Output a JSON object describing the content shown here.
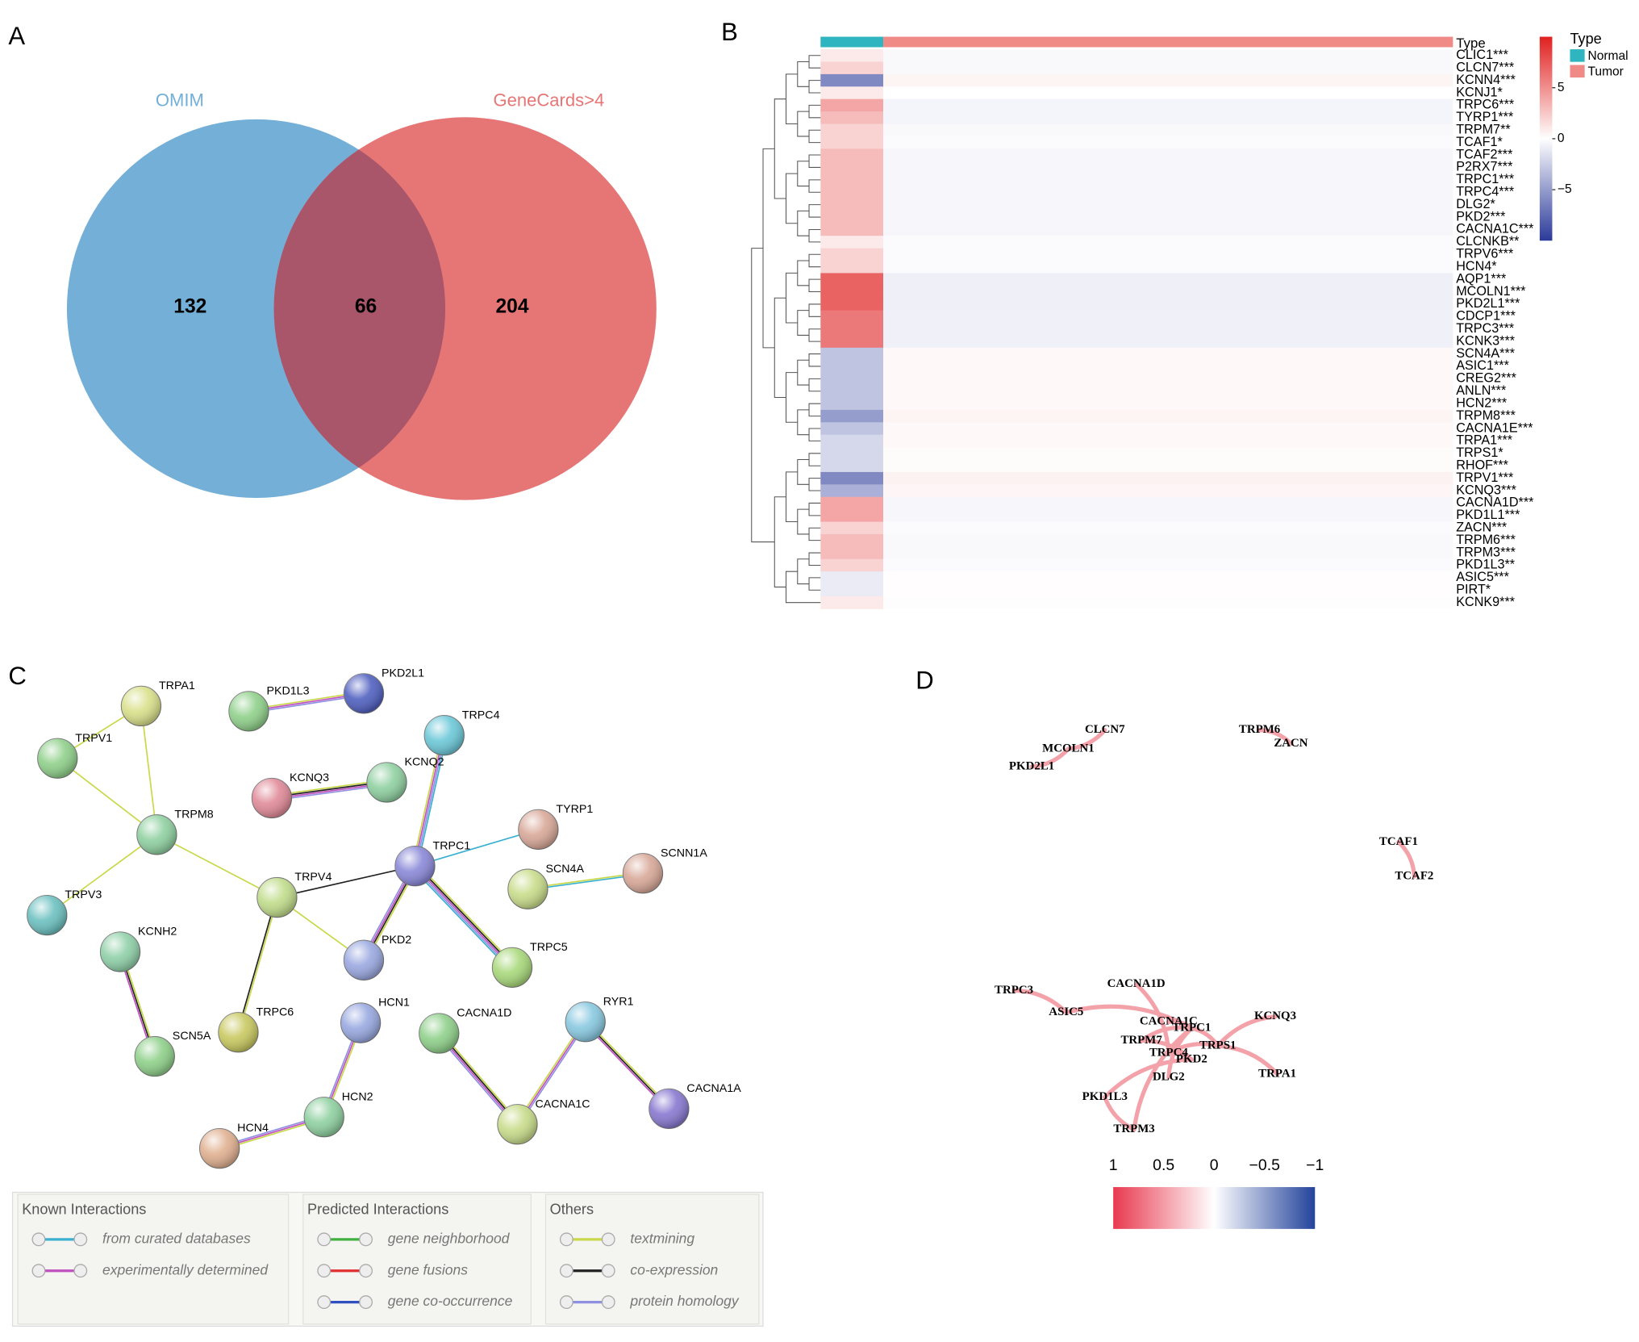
{
  "panel_labels": [
    "A",
    "B",
    "C",
    "D"
  ],
  "chart_data": [
    {
      "type": "venn",
      "sets": [
        {
          "name": "OMIM",
          "color": "#74afd8"
        },
        {
          "name": "GeneCards>4",
          "color": "#e67676"
        }
      ],
      "overlap_color": "#a9556a",
      "values": [
        132,
        66,
        204
      ]
    },
    {
      "type": "heatmap",
      "group_label": "Type",
      "rows": [
        "CLIC1***",
        "CLCN7***",
        "KCNN4***",
        "KCNJ1*",
        "TRPC6***",
        "TYRP1***",
        "TRPM7**",
        "TCAF1*",
        "TCAF2***",
        "P2RX7***",
        "TRPC1***",
        "TRPC4***",
        "DLG2*",
        "PKD2***",
        "CACNA1C***",
        "CLCNKB**",
        "TRPV6***",
        "HCN4*",
        "AQP1***",
        "MCOLN1***",
        "PKD2L1***",
        "CDCP1***",
        "TRPC3***",
        "KCNK3***",
        "SCN4A***",
        "ASIC1***",
        "CREG2***",
        "ANLN***",
        "HCN2***",
        "TRPM8***",
        "CACNA1E***",
        "TRPA1***",
        "TRPS1*",
        "RHOF***",
        "TRPV1***",
        "KCNQ3***",
        "CACNA1D***",
        "PKD1L1***",
        "ZACN***",
        "TRPM6***",
        "TRPM3***",
        "PKD1L3**",
        "ASIC5***",
        "PIRT*",
        "KCNK9***"
      ],
      "series": [
        {
          "name": "Normal",
          "color": "#2fb5bf",
          "values": [
            1,
            2,
            -6,
            1,
            4,
            3,
            2,
            2,
            3,
            3,
            3,
            3,
            3,
            3,
            3,
            1,
            2,
            2,
            7,
            7,
            7,
            6,
            6,
            6,
            -3,
            -3,
            -3,
            -3,
            -3,
            -5,
            -3,
            -2,
            -2,
            -2,
            -6,
            -4,
            4,
            4,
            2,
            3,
            3,
            2,
            -1,
            -1,
            1
          ]
        },
        {
          "name": "Tumor",
          "color": "#f08a86",
          "values": [
            -0.3,
            -0.3,
            0.5,
            0,
            -0.5,
            -0.5,
            -0.3,
            -0.2,
            -0.4,
            -0.4,
            -0.4,
            -0.4,
            -0.4,
            -0.4,
            -0.4,
            -0.2,
            -0.2,
            -0.2,
            -0.8,
            -0.8,
            -0.8,
            -0.7,
            -0.7,
            -0.7,
            0.3,
            0.3,
            0.3,
            0.3,
            0.3,
            0.5,
            0.3,
            0.3,
            0.2,
            0.2,
            0.6,
            0.4,
            -0.4,
            -0.4,
            -0.2,
            -0.3,
            -0.3,
            -0.2,
            0.1,
            0.1,
            -0.1
          ]
        }
      ],
      "colorbar": {
        "lim": [
          10,
          -10
        ],
        "ticks": [
          5,
          0,
          {
            "value": -5,
            "label": "−5"
          }
        ],
        "colors": [
          "#e0201f",
          "#ffffff",
          "#2b3a9a"
        ]
      }
    },
    {
      "type": "network",
      "nodes": [
        {
          "label": "TRPA1",
          "color": "#d9e08a"
        },
        {
          "label": "TRPV1",
          "color": "#8fd08a"
        },
        {
          "label": "TRPM8",
          "color": "#8fd0a0"
        },
        {
          "label": "TRPV3",
          "color": "#6cc0c0"
        },
        {
          "label": "KCNH2",
          "color": "#8fd0a8"
        },
        {
          "label": "SCN5A",
          "color": "#8fd08a"
        },
        {
          "label": "TRPC6",
          "color": "#c8c860"
        },
        {
          "label": "TRPV4",
          "color": "#c0dc8a"
        },
        {
          "label": "PKD2",
          "color": "#9aa8e0"
        },
        {
          "label": "TRPC1",
          "color": "#8a88d8"
        },
        {
          "label": "KCNQ3",
          "color": "#e08a98"
        },
        {
          "label": "KCNQ2",
          "color": "#8fd0a0"
        },
        {
          "label": "TRPC4",
          "color": "#6cc8d8"
        },
        {
          "label": "PKD1L3",
          "color": "#8fd08a"
        },
        {
          "label": "PKD2L1",
          "color": "#5060c0"
        },
        {
          "label": "TYRP1",
          "color": "#d8a898"
        },
        {
          "label": "SCN4A",
          "color": "#c8dc8a"
        },
        {
          "label": "SCNN1A",
          "color": "#d8a898"
        },
        {
          "label": "TRPC5",
          "color": "#a8d87a"
        },
        {
          "label": "HCN1",
          "color": "#98a8e0"
        },
        {
          "label": "HCN2",
          "color": "#8fd0a0"
        },
        {
          "label": "HCN4",
          "color": "#e0b090"
        },
        {
          "label": "CACNA1D",
          "color": "#8fd08a"
        },
        {
          "label": "CACNA1C",
          "color": "#c8dc8a"
        },
        {
          "label": "RYR1",
          "color": "#88c8e0"
        },
        {
          "label": "CACNA1A",
          "color": "#8878d0"
        }
      ],
      "edges": [
        {
          "source": "TRPA1",
          "target": "TRPV1",
          "colors": [
            "#c8d848"
          ]
        },
        {
          "source": "TRPA1",
          "target": "TRPM8",
          "colors": [
            "#c8d848"
          ]
        },
        {
          "source": "TRPV1",
          "target": "TRPM8",
          "colors": [
            "#c8d848"
          ]
        },
        {
          "source": "TRPM8",
          "target": "TRPV3",
          "colors": [
            "#c8d848"
          ]
        },
        {
          "source": "TRPM8",
          "target": "TRPV4",
          "colors": [
            "#c8d848"
          ]
        },
        {
          "source": "TRPV4",
          "target": "TRPC1",
          "colors": [
            "#222222"
          ]
        },
        {
          "source": "TRPV4",
          "target": "TRPC6",
          "colors": [
            "#c8d848",
            "#222222"
          ]
        },
        {
          "source": "TRPV4",
          "target": "PKD2",
          "colors": [
            "#c8d848"
          ]
        },
        {
          "source": "TRPC1",
          "target": "PKD2",
          "colors": [
            "#c8d848",
            "#222222",
            "#c050c0",
            "#9090e0"
          ]
        },
        {
          "source": "TRPC1",
          "target": "TRPC4",
          "colors": [
            "#c8d848",
            "#c050c0",
            "#9090e0",
            "#3ab0d0"
          ]
        },
        {
          "source": "TRPC1",
          "target": "TYRP1",
          "colors": [
            "#3ab0d0"
          ]
        },
        {
          "source": "TRPC1",
          "target": "TRPC5",
          "colors": [
            "#c8d848",
            "#222222",
            "#c050c0",
            "#9090e0",
            "#3ab0d0"
          ]
        },
        {
          "source": "KCNQ3",
          "target": "KCNQ2",
          "colors": [
            "#c8d848",
            "#222222",
            "#c050c0",
            "#9090e0"
          ]
        },
        {
          "source": "PKD1L3",
          "target": "PKD2L1",
          "colors": [
            "#c8d848",
            "#c050c0",
            "#9090e0"
          ]
        },
        {
          "source": "SCN4A",
          "target": "SCNN1A",
          "colors": [
            "#c8d848",
            "#3ab0d0"
          ]
        },
        {
          "source": "KCNH2",
          "target": "SCN5A",
          "colors": [
            "#c8d848",
            "#222222",
            "#c050c0"
          ]
        },
        {
          "source": "HCN1",
          "target": "HCN2",
          "colors": [
            "#c8d848",
            "#c050c0",
            "#9090e0"
          ]
        },
        {
          "source": "HCN2",
          "target": "HCN4",
          "colors": [
            "#c8d848",
            "#c050c0",
            "#9090e0"
          ]
        },
        {
          "source": "CACNA1D",
          "target": "CACNA1C",
          "colors": [
            "#c8d848",
            "#222222",
            "#c050c0",
            "#9090e0"
          ]
        },
        {
          "source": "CACNA1C",
          "target": "RYR1",
          "colors": [
            "#c8d848",
            "#c050c0",
            "#9090e0"
          ]
        },
        {
          "source": "RYR1",
          "target": "CACNA1A",
          "colors": [
            "#c8d848",
            "#222222",
            "#c050c0"
          ]
        }
      ],
      "legend": [
        {
          "title": "Known Interactions",
          "items": [
            {
              "label": "from curated databases",
              "color": "#3ab0d0"
            },
            {
              "label": "experimentally determined",
              "color": "#c050c0"
            }
          ]
        },
        {
          "title": "Predicted Interactions",
          "items": [
            {
              "label": "gene neighborhood",
              "color": "#40b040"
            },
            {
              "label": "gene fusions",
              "color": "#e03030"
            },
            {
              "label": "gene co-occurrence",
              "color": "#3050c0"
            }
          ]
        },
        {
          "title": "Others",
          "items": [
            {
              "label": "textmining",
              "color": "#c8d848"
            },
            {
              "label": "co-expression",
              "color": "#222222"
            },
            {
              "label": "protein homology",
              "color": "#9090e0"
            }
          ]
        }
      ]
    },
    {
      "type": "network",
      "edge_color": "#f4a2aa",
      "nodes": [
        "CLCN7",
        "MCOLN1",
        "PKD2L1",
        "TRPM6",
        "ZACN",
        "TCAF1",
        "TCAF2",
        "TRPC3",
        "ASIC5",
        "CACNA1D",
        "CACNA1C",
        "TRPC1",
        "TRPM7",
        "TRPS1",
        "TRPC4",
        "PKD2",
        "DLG2",
        "KCNQ3",
        "TRPA1",
        "PKD1L3",
        "TRPM3"
      ],
      "edges": [
        [
          "CLCN7",
          "MCOLN1"
        ],
        [
          "MCOLN1",
          "PKD2L1"
        ],
        [
          "TRPM6",
          "ZACN"
        ],
        [
          "TCAF1",
          "TCAF2"
        ],
        [
          "TRPC3",
          "ASIC5"
        ],
        [
          "ASIC5",
          "TRPC1"
        ],
        [
          "CACNA1D",
          "TRPC4"
        ],
        [
          "CACNA1C",
          "TRPC1"
        ],
        [
          "TRPM7",
          "TRPC1"
        ],
        [
          "TRPM7",
          "PKD2"
        ],
        [
          "TRPC4",
          "PKD2"
        ],
        [
          "TRPC1",
          "TRPS1"
        ],
        [
          "TRPS1",
          "KCNQ3"
        ],
        [
          "TRPS1",
          "TRPA1"
        ],
        [
          "DLG2",
          "TRPC1"
        ],
        [
          "PKD1L3",
          "PKD2"
        ],
        [
          "TRPM3",
          "TRPC1"
        ],
        [
          "TRPM3",
          "PKD1L3"
        ],
        [
          "TRPC4",
          "TRPS1"
        ]
      ],
      "colorbar": {
        "lim": [
          1,
          -1
        ],
        "ticks": [
          1,
          0.5,
          0,
          {
            "value": -0.5,
            "label": "−0.5"
          },
          {
            "value": -1,
            "label": "−1"
          }
        ],
        "colors": [
          "#e8394f",
          "#ffffff",
          "#23439b"
        ]
      }
    }
  ]
}
